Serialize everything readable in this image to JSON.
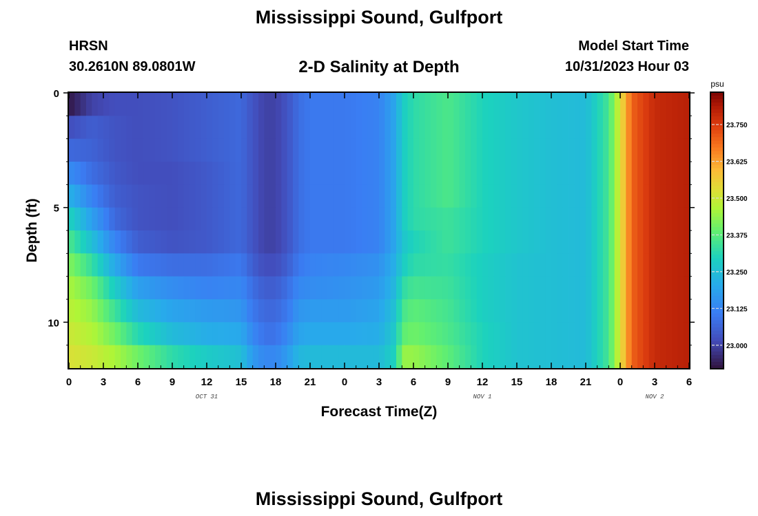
{
  "page": {
    "title": "Mississippi Sound, Gulfport",
    "bottom_title": "Mississippi Sound, Gulfport",
    "station_id": "HRSN",
    "station_coords": "30.2610N  89.0801W",
    "subtitle": "2-D Salinity at Depth",
    "model_start_label": "Model Start Time",
    "model_start_value": "10/31/2023 Hour 03"
  },
  "chart_data": {
    "type": "heatmap",
    "title": "2-D Salinity at Depth",
    "xlabel": "Forecast Time(Z)",
    "ylabel": "Depth (ft)",
    "x_tick_labels": [
      "0",
      "3",
      "6",
      "9",
      "12",
      "15",
      "18",
      "21",
      "0",
      "3",
      "6",
      "9",
      "12",
      "15",
      "18",
      "21",
      "0",
      "3",
      "6"
    ],
    "x_range_hours": [
      0,
      54
    ],
    "date_labels": [
      {
        "label": "OCT 31",
        "hour": 12
      },
      {
        "label": "NOV 1",
        "hour": 36
      },
      {
        "label": "NOV 2",
        "hour": 51
      }
    ],
    "y_tick_labels": [
      "0",
      "5",
      "10"
    ],
    "y_ticks": [
      0,
      5,
      10
    ],
    "y_range": [
      0,
      12
    ],
    "y_inverted": true,
    "colorbar": {
      "unit": "psu",
      "min": 22.92,
      "max": 23.86,
      "tick_values": [
        23.0,
        23.125,
        23.25,
        23.375,
        23.5,
        23.625,
        23.75
      ],
      "tick_labels": [
        "23.000",
        "23.125",
        "23.250",
        "23.375",
        "23.500",
        "23.625",
        "23.750"
      ],
      "palette": "turbo"
    },
    "depth_layers": [
      0.5,
      1.5,
      2.5,
      3.5,
      4.5,
      5.5,
      6.5,
      7.5,
      8.5,
      9.5,
      10.5,
      11.5
    ],
    "time_hours": [
      0,
      2,
      4,
      6,
      9,
      12,
      15,
      16,
      17,
      18,
      19,
      20,
      21,
      24,
      27,
      28.5,
      29,
      30,
      33,
      36,
      39,
      42,
      45,
      47,
      48,
      49,
      51,
      54
    ],
    "salinity": [
      [
        22.93,
        23.0,
        23.02,
        23.02,
        23.03,
        23.05,
        23.07,
        23.03,
        23.0,
        23.0,
        23.03,
        23.08,
        23.1,
        23.1,
        23.12,
        23.2,
        23.28,
        23.32,
        23.36,
        23.3,
        23.27,
        23.25,
        23.24,
        23.35,
        23.52,
        23.7,
        23.78,
        23.8
      ],
      [
        23.02,
        23.05,
        23.03,
        23.02,
        23.03,
        23.05,
        23.07,
        23.03,
        23.0,
        23.0,
        23.03,
        23.08,
        23.1,
        23.1,
        23.12,
        23.2,
        23.28,
        23.32,
        23.36,
        23.3,
        23.27,
        23.25,
        23.24,
        23.35,
        23.52,
        23.7,
        23.78,
        23.8
      ],
      [
        23.07,
        23.06,
        23.03,
        23.02,
        23.03,
        23.05,
        23.07,
        23.03,
        23.0,
        23.0,
        23.03,
        23.08,
        23.1,
        23.1,
        23.12,
        23.2,
        23.28,
        23.32,
        23.36,
        23.3,
        23.27,
        23.25,
        23.24,
        23.35,
        23.52,
        23.7,
        23.78,
        23.8
      ],
      [
        23.14,
        23.08,
        23.04,
        23.02,
        23.02,
        23.04,
        23.07,
        23.03,
        23.0,
        23.0,
        23.03,
        23.08,
        23.1,
        23.1,
        23.12,
        23.2,
        23.28,
        23.32,
        23.36,
        23.3,
        23.27,
        23.25,
        23.24,
        23.35,
        23.52,
        23.7,
        23.78,
        23.8
      ],
      [
        23.22,
        23.12,
        23.05,
        23.03,
        23.02,
        23.04,
        23.07,
        23.03,
        23.0,
        23.0,
        23.03,
        23.08,
        23.1,
        23.1,
        23.12,
        23.2,
        23.28,
        23.32,
        23.36,
        23.3,
        23.27,
        23.25,
        23.24,
        23.35,
        23.52,
        23.7,
        23.78,
        23.8
      ],
      [
        23.3,
        23.18,
        23.07,
        23.03,
        23.02,
        23.04,
        23.07,
        23.03,
        23.0,
        23.0,
        23.03,
        23.08,
        23.1,
        23.1,
        23.12,
        23.2,
        23.28,
        23.32,
        23.34,
        23.3,
        23.27,
        23.25,
        23.24,
        23.35,
        23.52,
        23.7,
        23.78,
        23.8
      ],
      [
        23.36,
        23.25,
        23.12,
        23.05,
        23.03,
        23.04,
        23.07,
        23.03,
        23.0,
        23.0,
        23.03,
        23.08,
        23.1,
        23.1,
        23.12,
        23.2,
        23.26,
        23.3,
        23.34,
        23.3,
        23.27,
        23.25,
        23.24,
        23.35,
        23.52,
        23.7,
        23.78,
        23.8
      ],
      [
        23.42,
        23.33,
        23.2,
        23.1,
        23.08,
        23.08,
        23.1,
        23.05,
        23.02,
        23.02,
        23.05,
        23.1,
        23.12,
        23.13,
        23.15,
        23.22,
        23.28,
        23.32,
        23.33,
        23.29,
        23.26,
        23.25,
        23.24,
        23.35,
        23.52,
        23.7,
        23.78,
        23.8
      ],
      [
        23.46,
        23.4,
        23.28,
        23.18,
        23.14,
        23.12,
        23.13,
        23.08,
        23.05,
        23.05,
        23.08,
        23.13,
        23.14,
        23.15,
        23.17,
        23.24,
        23.32,
        23.35,
        23.34,
        23.29,
        23.26,
        23.25,
        23.24,
        23.35,
        23.52,
        23.7,
        23.78,
        23.8
      ],
      [
        23.48,
        23.44,
        23.34,
        23.24,
        23.19,
        23.17,
        23.16,
        23.1,
        23.07,
        23.07,
        23.1,
        23.16,
        23.17,
        23.17,
        23.19,
        23.26,
        23.35,
        23.38,
        23.35,
        23.29,
        23.26,
        23.25,
        23.24,
        23.35,
        23.52,
        23.7,
        23.78,
        23.8
      ],
      [
        23.5,
        23.47,
        23.4,
        23.31,
        23.24,
        23.21,
        23.2,
        23.13,
        23.09,
        23.09,
        23.13,
        23.19,
        23.2,
        23.2,
        23.21,
        23.28,
        23.38,
        23.4,
        23.36,
        23.3,
        23.26,
        23.25,
        23.24,
        23.35,
        23.52,
        23.7,
        23.78,
        23.8
      ],
      [
        23.52,
        23.5,
        23.46,
        23.4,
        23.32,
        23.28,
        23.25,
        23.17,
        23.13,
        23.13,
        23.17,
        23.23,
        23.24,
        23.24,
        23.24,
        23.3,
        23.44,
        23.44,
        23.38,
        23.3,
        23.26,
        23.25,
        23.24,
        23.35,
        23.52,
        23.7,
        23.78,
        23.8
      ]
    ]
  }
}
